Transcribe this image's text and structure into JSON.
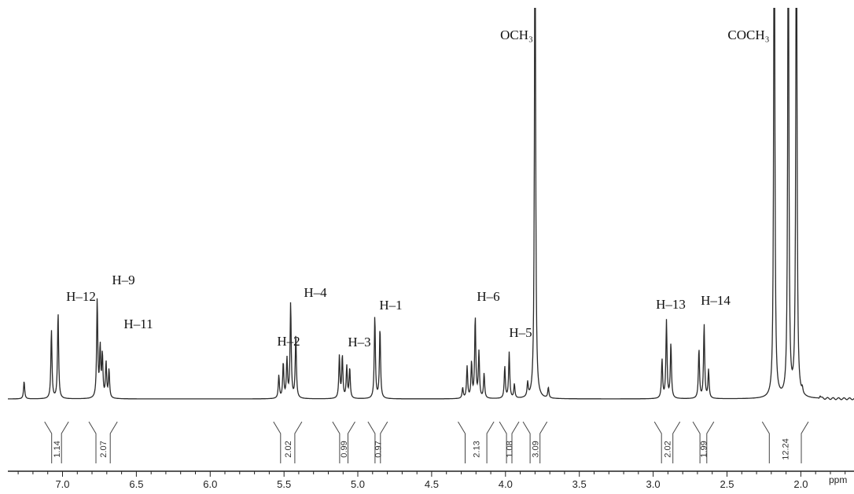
{
  "chart_data": {
    "type": "line",
    "title": "",
    "xlabel": "ppm",
    "ylabel": "",
    "xlim": [
      7.37,
      1.64
    ],
    "x_reversed": true,
    "grid": false,
    "ticks": [
      "7.0",
      "6.5",
      "6.0",
      "5.5",
      "5.0",
      "4.5",
      "4.0",
      "3.5",
      "3.0",
      "2.5",
      "2.0"
    ],
    "tick_values": [
      7.0,
      6.5,
      6.0,
      5.5,
      5.0,
      4.5,
      4.0,
      3.5,
      3.0,
      2.5,
      2.0
    ],
    "peak_labels": [
      {
        "text": "H–12",
        "ppm": 7.05
      },
      {
        "text": "H–9",
        "ppm": 6.76
      },
      {
        "text": "H–11",
        "ppm": 6.69
      },
      {
        "text": "H–2",
        "ppm": 5.5
      },
      {
        "text": "H–4",
        "ppm": 5.44
      },
      {
        "text": "H–3",
        "ppm": 5.1
      },
      {
        "text": "H–1",
        "ppm": 4.87
      },
      {
        "text": "H–6",
        "ppm": 4.2
      },
      {
        "text": "H–5",
        "ppm": 3.98
      },
      {
        "text": "OCH₃",
        "ppm": 3.8
      },
      {
        "text": "H–13",
        "ppm": 2.9
      },
      {
        "text": "H–14",
        "ppm": 2.66
      },
      {
        "text": "COCH₃",
        "ppm": 2.18
      }
    ],
    "integrals": [
      {
        "value": "1.14",
        "from": 7.1,
        "to": 6.98
      },
      {
        "value": "2.07",
        "from": 6.8,
        "to": 6.65
      },
      {
        "value": "2.02",
        "from": 5.55,
        "to": 5.4
      },
      {
        "value": "0.99",
        "from": 5.15,
        "to": 5.04
      },
      {
        "value": "0.97",
        "from": 4.91,
        "to": 4.82
      },
      {
        "value": "2.13",
        "from": 4.3,
        "to": 4.1
      },
      {
        "value": "1.08",
        "from": 4.02,
        "to": 3.93
      },
      {
        "value": "3.09",
        "from": 3.86,
        "to": 3.74
      },
      {
        "value": "2.02",
        "from": 2.97,
        "to": 2.84
      },
      {
        "value": "1.99",
        "from": 2.71,
        "to": 2.61
      },
      {
        "value": "12.24",
        "from": 2.24,
        "to": 1.97
      }
    ],
    "peaks": [
      {
        "ppm": 7.26,
        "h": 0.05
      },
      {
        "ppm": 7.075,
        "h": 0.195
      },
      {
        "ppm": 7.03,
        "h": 0.245
      },
      {
        "ppm": 6.765,
        "h": 0.28
      },
      {
        "ppm": 6.745,
        "h": 0.14
      },
      {
        "ppm": 6.73,
        "h": 0.12
      },
      {
        "ppm": 6.705,
        "h": 0.1
      },
      {
        "ppm": 6.685,
        "h": 0.08
      },
      {
        "ppm": 5.535,
        "h": 0.065
      },
      {
        "ppm": 5.505,
        "h": 0.1
      },
      {
        "ppm": 5.48,
        "h": 0.11
      },
      {
        "ppm": 5.455,
        "h": 0.27
      },
      {
        "ppm": 5.42,
        "h": 0.18
      },
      {
        "ppm": 5.125,
        "h": 0.12
      },
      {
        "ppm": 5.105,
        "h": 0.12
      },
      {
        "ppm": 5.075,
        "h": 0.09
      },
      {
        "ppm": 5.055,
        "h": 0.085
      },
      {
        "ppm": 4.885,
        "h": 0.235
      },
      {
        "ppm": 4.85,
        "h": 0.2
      },
      {
        "ppm": 4.29,
        "h": 0.03
      },
      {
        "ppm": 4.26,
        "h": 0.09
      },
      {
        "ppm": 4.23,
        "h": 0.1
      },
      {
        "ppm": 4.205,
        "h": 0.23
      },
      {
        "ppm": 4.18,
        "h": 0.13
      },
      {
        "ppm": 4.145,
        "h": 0.07
      },
      {
        "ppm": 4.005,
        "h": 0.09
      },
      {
        "ppm": 3.975,
        "h": 0.13
      },
      {
        "ppm": 3.94,
        "h": 0.04
      },
      {
        "ppm": 3.85,
        "h": 0.04
      },
      {
        "ppm": 3.8,
        "h": 1.5
      },
      {
        "ppm": 3.71,
        "h": 0.03
      },
      {
        "ppm": 2.94,
        "h": 0.11
      },
      {
        "ppm": 2.91,
        "h": 0.22
      },
      {
        "ppm": 2.88,
        "h": 0.155
      },
      {
        "ppm": 2.69,
        "h": 0.14
      },
      {
        "ppm": 2.655,
        "h": 0.21
      },
      {
        "ppm": 2.625,
        "h": 0.08
      },
      {
        "ppm": 2.18,
        "h": 1.6
      },
      {
        "ppm": 2.085,
        "h": 1.5
      },
      {
        "ppm": 2.03,
        "h": 1.6
      },
      {
        "ppm": 1.99,
        "h": 0.015
      },
      {
        "ppm": 1.87,
        "h": 0.008
      }
    ]
  }
}
